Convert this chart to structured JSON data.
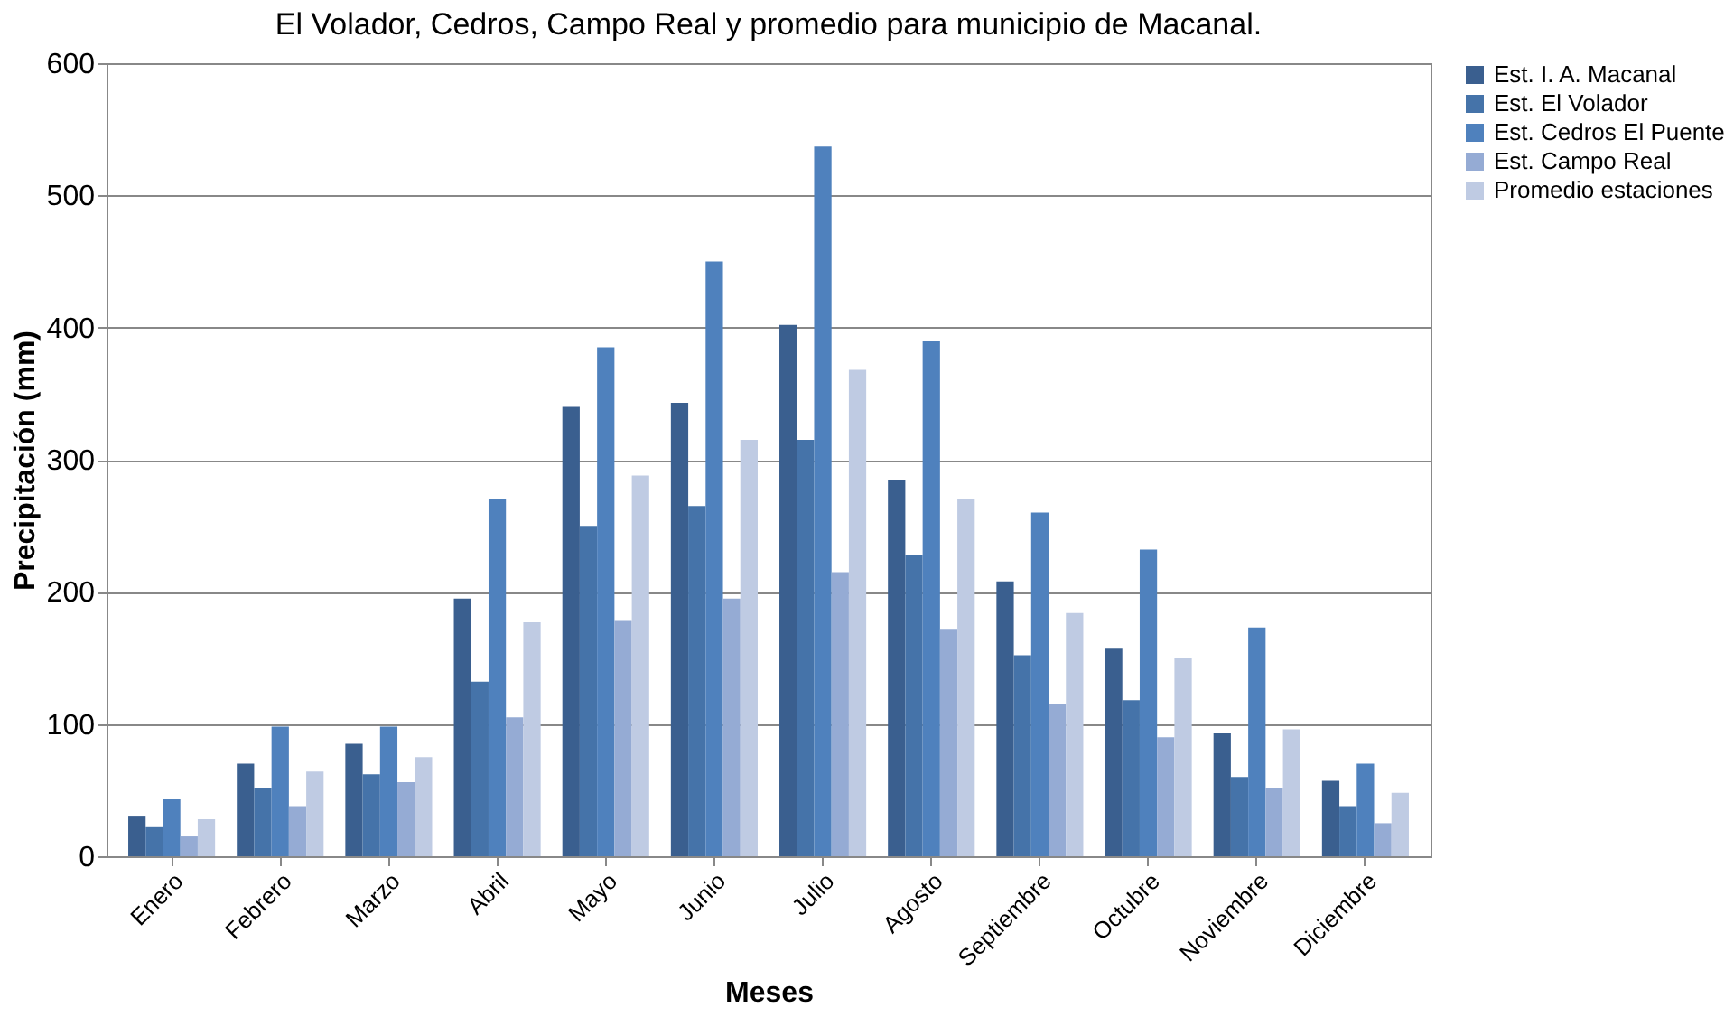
{
  "chart_data": {
    "type": "bar",
    "title": "El Volador, Cedros, Campo Real y promedio para municipio de Macanal.",
    "xlabel": "Meses",
    "ylabel": "Precipitación (mm)",
    "categories": [
      "Enero",
      "Febrero",
      "Marzo",
      "Abril",
      "Mayo",
      "Junio",
      "Julio",
      "Agosto",
      "Septiembre",
      "Octubre",
      "Noviembre",
      "Diciembre"
    ],
    "series": [
      {
        "name": "Est. I. A. Macanal",
        "color": "#3a5f8f",
        "values": [
          30,
          70,
          85,
          195,
          340,
          343,
          402,
          285,
          208,
          157,
          93,
          57
        ]
      },
      {
        "name": "Est. El Volador",
        "color": "#4573a9",
        "values": [
          22,
          52,
          62,
          132,
          250,
          265,
          315,
          228,
          152,
          118,
          60,
          38
        ]
      },
      {
        "name": "Est. Cedros El Puente",
        "color": "#4f81bd",
        "values": [
          43,
          98,
          98,
          270,
          385,
          450,
          537,
          390,
          260,
          232,
          173,
          70
        ]
      },
      {
        "name": "Est. Campo Real",
        "color": "#95abd4",
        "values": [
          15,
          38,
          56,
          105,
          178,
          195,
          215,
          172,
          115,
          90,
          52,
          25
        ]
      },
      {
        "name": "Promedio estaciones",
        "color": "#bfcbe3",
        "values": [
          28,
          64,
          75,
          177,
          288,
          315,
          368,
          270,
          184,
          150,
          96,
          48
        ]
      }
    ],
    "ylim": [
      0,
      600
    ],
    "yticks": [
      0,
      100,
      200,
      300,
      400,
      500,
      600
    ],
    "grid": "y",
    "legend": "right"
  }
}
